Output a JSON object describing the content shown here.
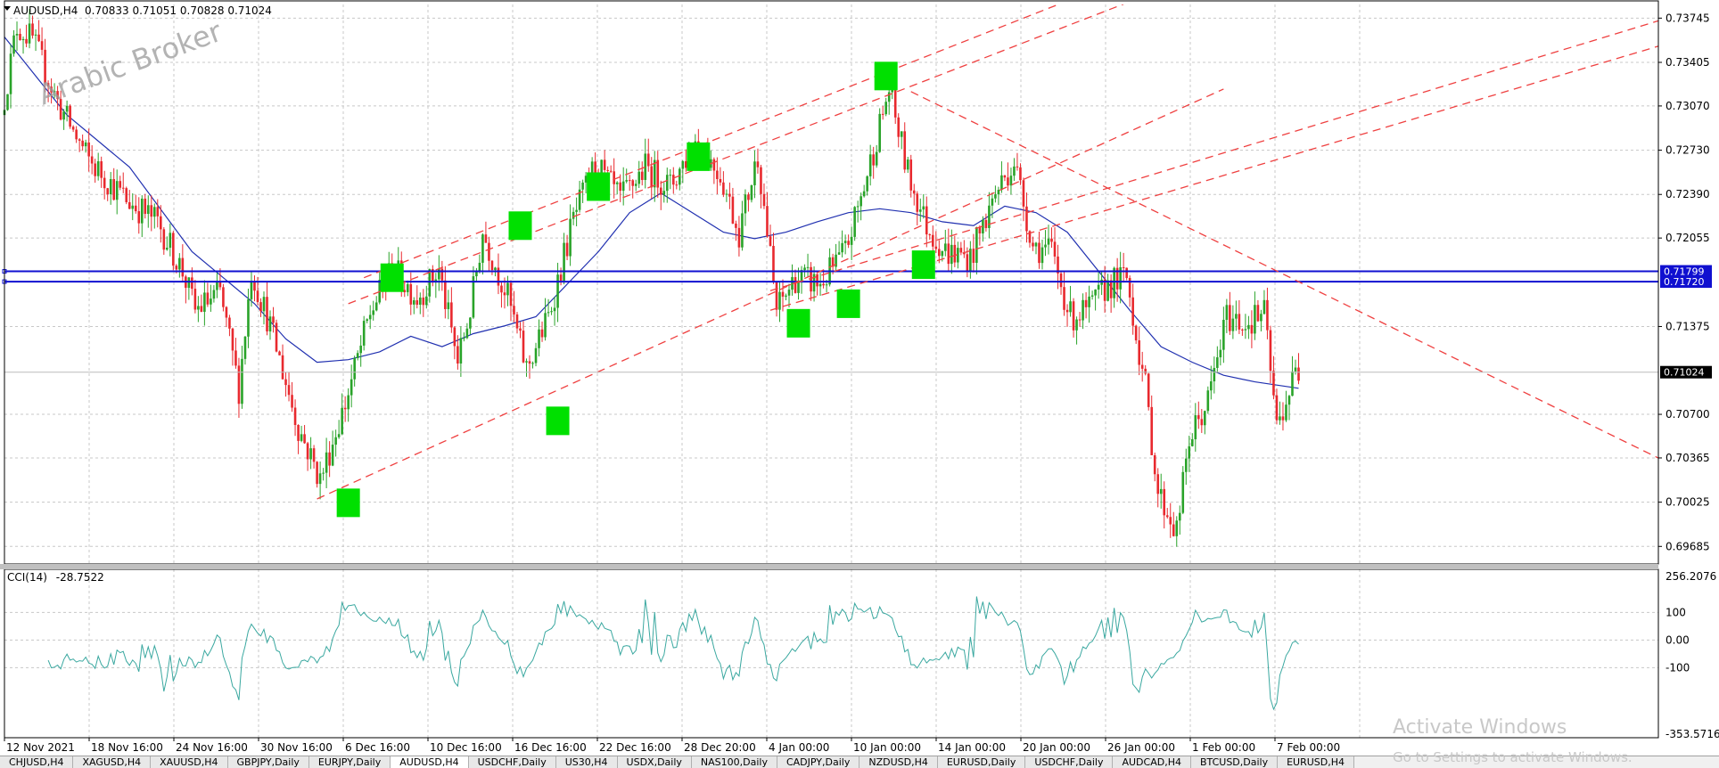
{
  "header": {
    "symbol_tf": "AUDUSD,H4",
    "ohlc": "0.70833 0.71051 0.70828 0.71024"
  },
  "watermark": "Arabic Broker",
  "tabs": [
    "CHJUSD,H4",
    "XAGUSD,H4",
    "XAUUSD,H4",
    "GBPJPY,Daily",
    "EURJPY,Daily",
    "AUDUSD,H4",
    "USDCHF,Daily",
    "US30,H4",
    "USDX,Daily",
    "NAS100,Daily",
    "CADJPY,Daily",
    "NZDUSD,H4",
    "EURUSD,Daily",
    "USDCHF,Daily",
    "AUDCAD,H4",
    "BTCUSD,Daily",
    "EURUSD,H4"
  ],
  "active_tab": 5,
  "os_notice": {
    "title": "Activate Windows",
    "subtitle": "Go to Settings to activate Windows."
  },
  "colors": {
    "bull": "#29a329",
    "bear": "#e8292e",
    "ma": "#2030b0",
    "cci": "#3aa8a0",
    "trend": "#ef4040",
    "level": "#1010d0",
    "marker": "#00e000"
  },
  "chart_data": [
    {
      "type": "candlestick",
      "symbol": "AUDUSD",
      "timeframe": "H4",
      "current_price": "0.71024",
      "ylim": [
        0.6955,
        0.7385
      ],
      "y_ticks": [
        "0.73745",
        "0.73405",
        "0.73070",
        "0.72730",
        "0.72390",
        "0.72055",
        "0.71375",
        "0.70700",
        "0.70365",
        "0.70025",
        "0.69685"
      ],
      "x_ticks": [
        "12 Nov 2021",
        "18 Nov 16:00",
        "24 Nov 16:00",
        "30 Nov 16:00",
        "6 Dec 16:00",
        "10 Dec 16:00",
        "16 Dec 16:00",
        "22 Dec 16:00",
        "28 Dec 20:00",
        "4 Jan 00:00",
        "10 Jan 00:00",
        "14 Jan 00:00",
        "20 Jan 00:00",
        "26 Jan 00:00",
        "1 Feb 00:00",
        "7 Feb 00:00"
      ],
      "close_path": [
        [
          0,
          0.73
        ],
        [
          5,
          0.7368
        ],
        [
          10,
          0.7358
        ],
        [
          18,
          0.731
        ],
        [
          28,
          0.7265
        ],
        [
          40,
          0.7235
        ],
        [
          50,
          0.7218
        ],
        [
          58,
          0.718
        ],
        [
          62,
          0.715
        ],
        [
          70,
          0.7163
        ],
        [
          76,
          0.709
        ],
        [
          80,
          0.718
        ],
        [
          86,
          0.7138
        ],
        [
          95,
          0.706
        ],
        [
          102,
          0.702
        ],
        [
          110,
          0.7078
        ],
        [
          118,
          0.7148
        ],
        [
          125,
          0.7182
        ],
        [
          133,
          0.716
        ],
        [
          140,
          0.718
        ],
        [
          146,
          0.711
        ],
        [
          150,
          0.715
        ],
        [
          154,
          0.721
        ],
        [
          162,
          0.716
        ],
        [
          168,
          0.7105
        ],
        [
          175,
          0.7145
        ],
        [
          183,
          0.722
        ],
        [
          190,
          0.7262
        ],
        [
          198,
          0.7235
        ],
        [
          206,
          0.726
        ],
        [
          214,
          0.7245
        ],
        [
          222,
          0.728
        ],
        [
          230,
          0.7255
        ],
        [
          236,
          0.721
        ],
        [
          242,
          0.727
        ],
        [
          248,
          0.715
        ],
        [
          254,
          0.7175
        ],
        [
          262,
          0.717
        ],
        [
          270,
          0.7195
        ],
        [
          276,
          0.7245
        ],
        [
          284,
          0.732
        ],
        [
          290,
          0.7255
        ],
        [
          296,
          0.7215
        ],
        [
          302,
          0.7195
        ],
        [
          310,
          0.719
        ],
        [
          318,
          0.724
        ],
        [
          324,
          0.7265
        ],
        [
          330,
          0.72
        ],
        [
          336,
          0.7195
        ],
        [
          342,
          0.7145
        ],
        [
          348,
          0.715
        ],
        [
          354,
          0.717
        ],
        [
          360,
          0.7175
        ],
        [
          366,
          0.709
        ],
        [
          370,
          0.701
        ],
        [
          376,
          0.698
        ],
        [
          380,
          0.705
        ],
        [
          386,
          0.708
        ],
        [
          392,
          0.7145
        ],
        [
          398,
          0.714
        ],
        [
          404,
          0.7148
        ],
        [
          408,
          0.706
        ],
        [
          414,
          0.7102
        ]
      ],
      "bars_total": 415,
      "moving_average": [
        [
          0,
          0.736
        ],
        [
          20,
          0.73
        ],
        [
          40,
          0.726
        ],
        [
          60,
          0.7195
        ],
        [
          80,
          0.7155
        ],
        [
          90,
          0.7128
        ],
        [
          100,
          0.711
        ],
        [
          110,
          0.7112
        ],
        [
          120,
          0.7118
        ],
        [
          130,
          0.713
        ],
        [
          140,
          0.7122
        ],
        [
          150,
          0.7132
        ],
        [
          160,
          0.7138
        ],
        [
          170,
          0.7145
        ],
        [
          180,
          0.717
        ],
        [
          190,
          0.7195
        ],
        [
          200,
          0.7225
        ],
        [
          210,
          0.724
        ],
        [
          220,
          0.7225
        ],
        [
          230,
          0.721
        ],
        [
          240,
          0.7205
        ],
        [
          250,
          0.721
        ],
        [
          260,
          0.7218
        ],
        [
          270,
          0.7225
        ],
        [
          280,
          0.7228
        ],
        [
          290,
          0.7225
        ],
        [
          300,
          0.7218
        ],
        [
          310,
          0.7215
        ],
        [
          320,
          0.723
        ],
        [
          330,
          0.7225
        ],
        [
          340,
          0.721
        ],
        [
          350,
          0.718
        ],
        [
          360,
          0.715
        ],
        [
          370,
          0.7122
        ],
        [
          380,
          0.711
        ],
        [
          390,
          0.71
        ],
        [
          400,
          0.7095
        ],
        [
          414,
          0.709
        ]
      ],
      "horizontal_levels": [
        "0.71799",
        "0.71720"
      ],
      "trend_lines": [
        [
          [
            100,
            0.7005
          ],
          [
            390,
            0.732
          ]
        ],
        [
          [
            110,
            0.7155
          ],
          [
            390,
            0.7415
          ]
        ],
        [
          [
            115,
            0.7175
          ],
          [
            390,
            0.7435
          ]
        ],
        [
          [
            245,
            0.715
          ],
          [
            560,
            0.7375
          ]
        ],
        [
          [
            245,
            0.7165
          ],
          [
            560,
            0.7395
          ]
        ],
        [
          [
            290,
            0.7318
          ],
          [
            560,
            0.7
          ]
        ]
      ],
      "markers": [
        [
          110,
          0.7002
        ],
        [
          124,
          0.7175
        ],
        [
          165,
          0.7215
        ],
        [
          177,
          0.7065
        ],
        [
          190,
          0.7245
        ],
        [
          222,
          0.7268
        ],
        [
          254,
          0.714
        ],
        [
          270,
          0.7155
        ],
        [
          282,
          0.733
        ],
        [
          294,
          0.7185
        ]
      ]
    },
    {
      "type": "line",
      "indicator": "CCI(14)",
      "value_label": "-28.7522",
      "ylim": [
        -353.5716,
        256.2076
      ],
      "y_ticks": [
        "256.2076",
        "100",
        "0.00",
        "-100",
        "-353.5716"
      ],
      "seed": 7
    }
  ]
}
